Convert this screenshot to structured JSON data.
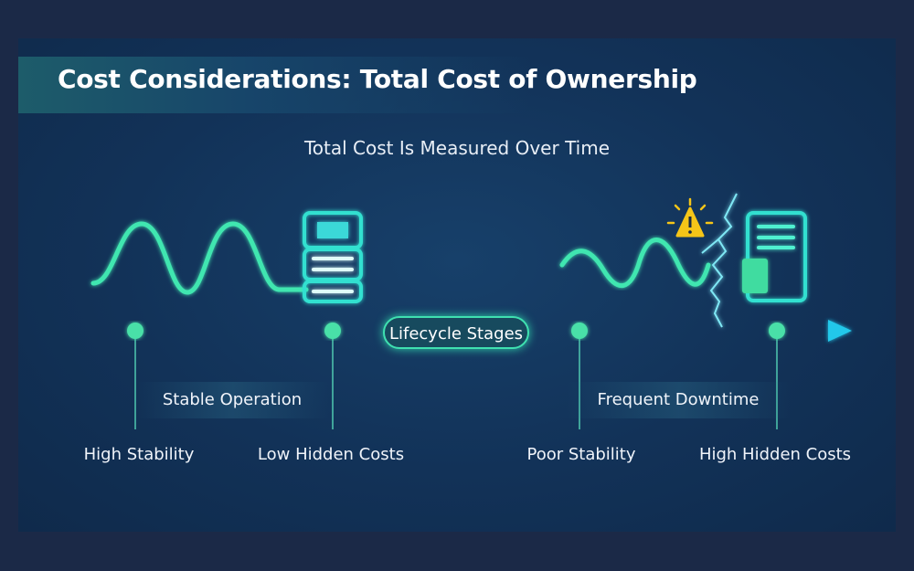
{
  "title": "Cost Considerations: Total Cost of Ownership",
  "subtitle": "Total Cost Is Measured Over Time",
  "timeline": {
    "center_label": "Lifecycle Stages",
    "left_phase": "Stable Operation",
    "right_phase": "Frequent Downtime",
    "points": [
      "High Stability",
      "Low Hidden Costs",
      "Poor Stability",
      "High Hidden Costs"
    ]
  },
  "icons": {
    "left": [
      "sine-wave-icon",
      "server-stack-icon"
    ],
    "right": [
      "unstable-wave-icon",
      "warning-icon",
      "crack-icon",
      "document-icon"
    ]
  },
  "colors": {
    "accent_green": "#3fe6a8",
    "accent_cyan": "#22d3e6",
    "warning": "#f5c518",
    "background": "#123258"
  }
}
